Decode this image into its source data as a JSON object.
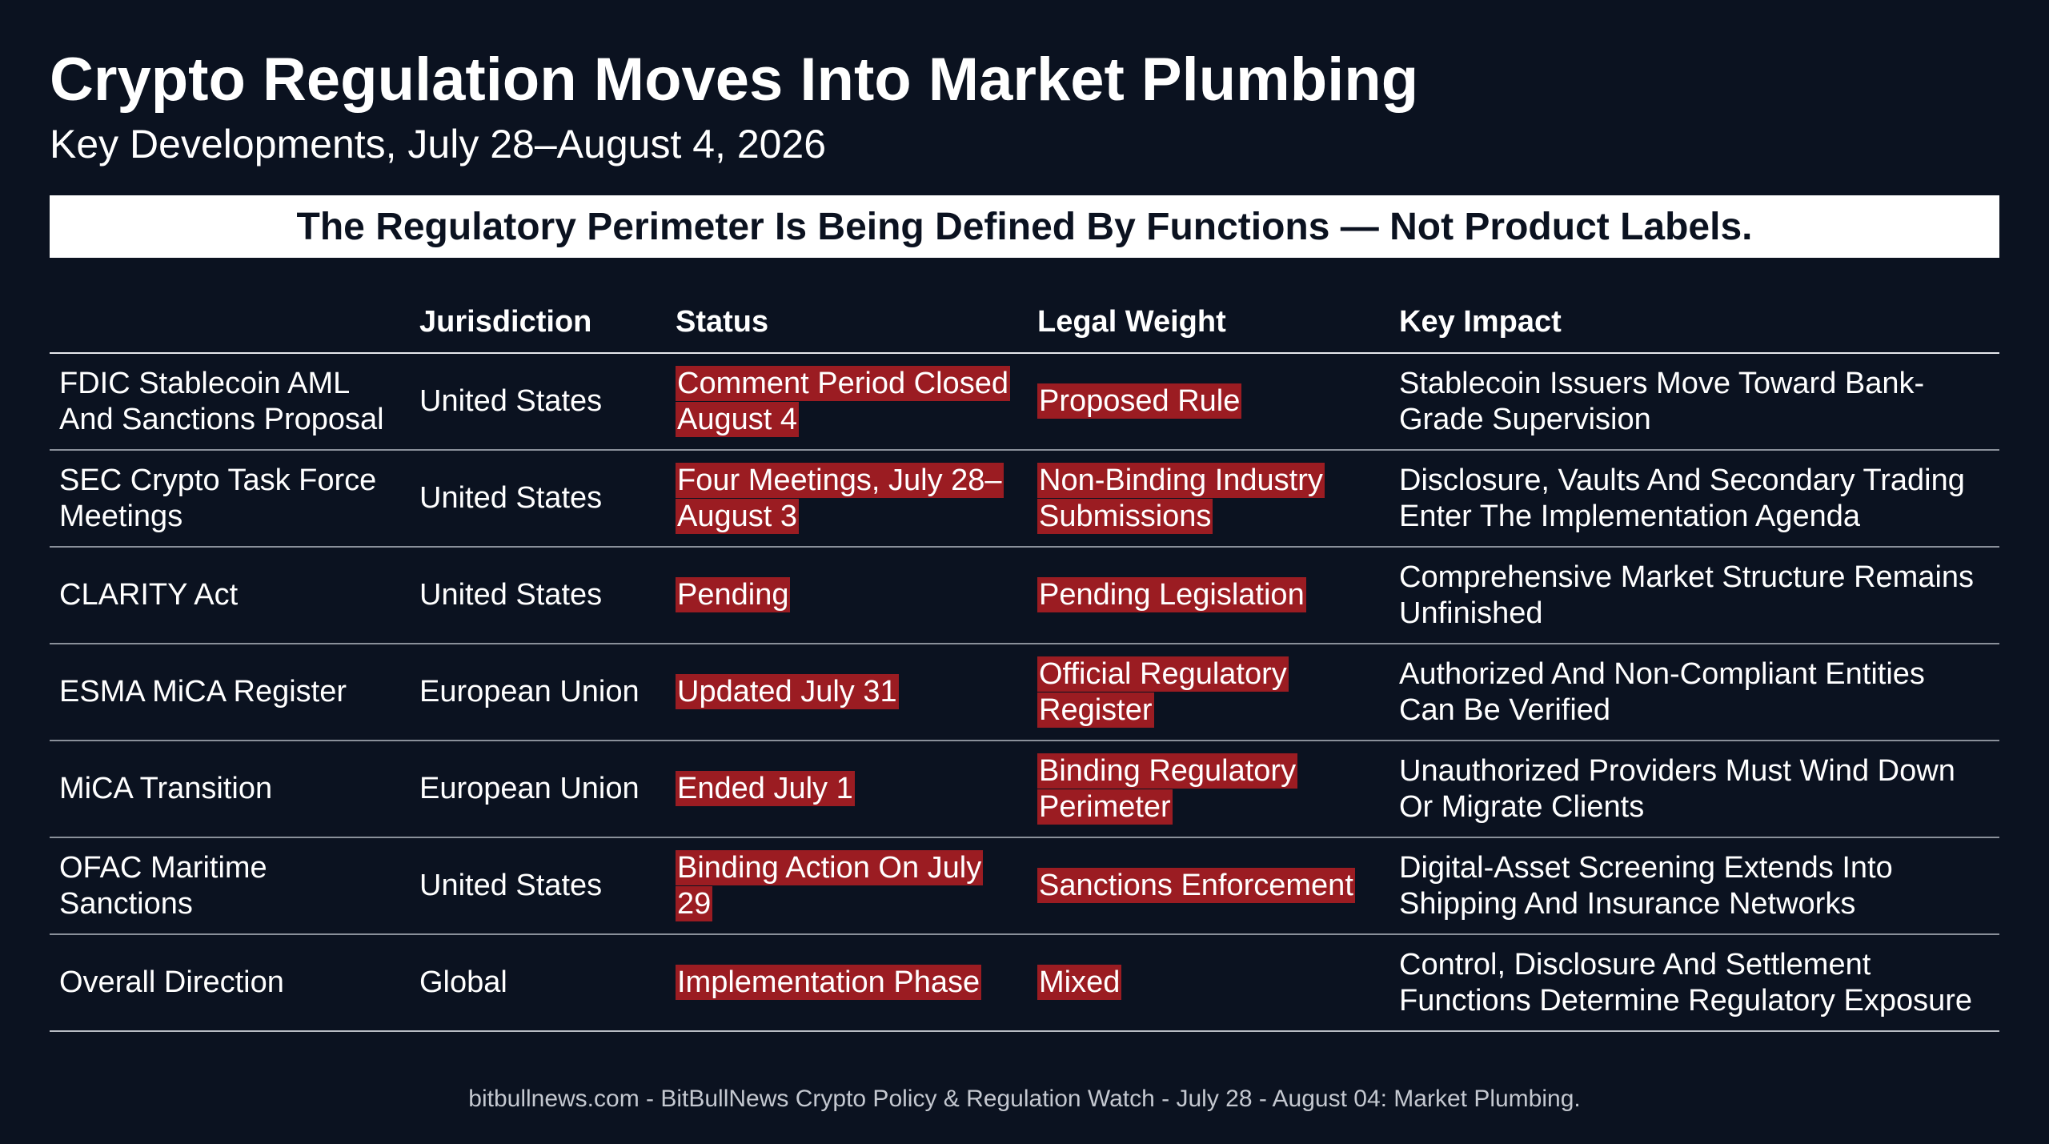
{
  "title": "Crypto Regulation Moves Into Market Plumbing",
  "subtitle": "Key Developments, July 28–August 4, 2026",
  "banner": "The Regulatory Perimeter Is Being Defined By Functions — Not Product Labels.",
  "table": {
    "headers": [
      "",
      "Jurisdiction",
      "Status",
      "Legal Weight",
      "Key Impact"
    ],
    "rows": [
      {
        "name": "FDIC Stablecoin AML And Sanctions Proposal",
        "jurisdiction": "United States",
        "status": "Comment Period Closed August 4",
        "weight": "Proposed Rule",
        "impact": "Stablecoin Issuers Move Toward Bank-Grade Supervision"
      },
      {
        "name": "SEC Crypto Task Force Meetings",
        "jurisdiction": "United States",
        "status": "Four Meetings, July 28–August 3",
        "weight": "Non-Binding Industry Submissions",
        "impact": "Disclosure, Vaults And Secondary Trading Enter The Implementation Agenda"
      },
      {
        "name": "CLARITY Act",
        "jurisdiction": "United States",
        "status": "Pending",
        "weight": "Pending Legislation",
        "impact": "Comprehensive Market Structure Remains Unfinished"
      },
      {
        "name": "ESMA MiCA Register",
        "jurisdiction": "European Union",
        "status": "Updated July 31",
        "weight": "Official Regulatory Register",
        "impact": "Authorized And Non-Compliant Entities Can Be Verified"
      },
      {
        "name": "MiCA Transition",
        "jurisdiction": "European Union",
        "status": "Ended July 1",
        "weight": "Binding Regulatory Perimeter",
        "impact": "Unauthorized Providers Must Wind Down Or Migrate Clients"
      },
      {
        "name": "OFAC Maritime Sanctions",
        "jurisdiction": "United States",
        "status": "Binding Action On July 29",
        "weight": "Sanctions Enforcement",
        "impact": "Digital-Asset Screening Extends Into Shipping And Insurance Networks"
      },
      {
        "name": "Overall Direction",
        "jurisdiction": "Global",
        "status": "Implementation Phase",
        "weight": "Mixed",
        "impact": "Control, Disclosure And Settlement Functions Determine Regulatory Exposure"
      }
    ]
  },
  "footer": "bitbullnews.com - BitBullNews Crypto Policy & Regulation Watch - July 28 - August 04: Market Plumbing.",
  "colors": {
    "background": "#0b1220",
    "highlight": "#9b1c22",
    "banner_bg": "#ffffff"
  }
}
